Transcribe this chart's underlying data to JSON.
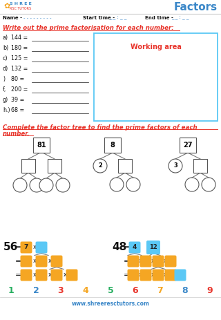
{
  "title": "Factors",
  "bg_color": "#ffffff",
  "red_color": "#e8332a",
  "blue_color": "#3a87c8",
  "orange_color": "#f5a623",
  "cyan_color": "#5bc8f5",
  "gray_color": "#888888",
  "footer": "www.shreeresctutors.com",
  "section1_items": [
    [
      "a)",
      "144"
    ],
    [
      "b)",
      "180"
    ],
    [
      "c)",
      "125"
    ],
    [
      "d)",
      "132"
    ],
    [
      ")",
      "80"
    ],
    [
      "f,",
      "200"
    ],
    [
      "g)",
      "39"
    ],
    [
      "h.)",
      "68"
    ]
  ],
  "number_row": [
    "1",
    "2",
    "3",
    "4",
    "5",
    "6",
    "7",
    "8",
    "9"
  ],
  "number_row_colors": [
    "#27ae60",
    "#3a87c8",
    "#e8332a",
    "#f5a623",
    "#27ae60",
    "#e8332a",
    "#f5a623",
    "#3a87c8",
    "#e8332a"
  ],
  "tree1_top": "81",
  "tree2_top": "8",
  "tree2_circle": "2",
  "tree3_top": "27",
  "tree3_circle": "3"
}
